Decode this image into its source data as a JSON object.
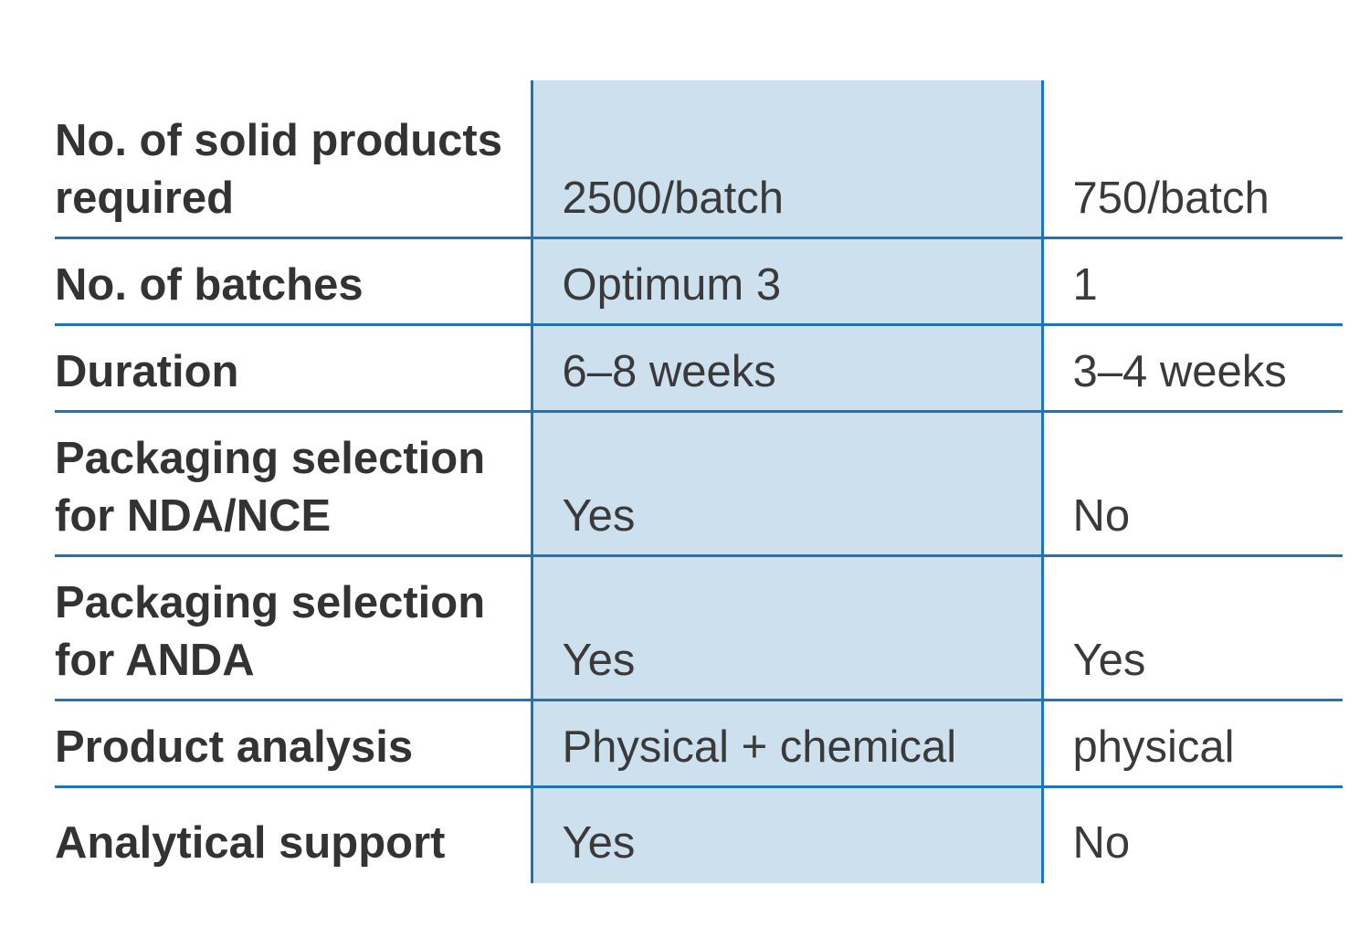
{
  "table": {
    "rows": [
      {
        "label": "No. of solid products required",
        "col_a": "2500/batch",
        "col_b": "750/batch"
      },
      {
        "label": "No. of batches",
        "col_a": "Optimum 3",
        "col_b": "1"
      },
      {
        "label": "Duration",
        "col_a": "6–8 weeks",
        "col_b": "3–4 weeks"
      },
      {
        "label": "Packaging selection for NDA/NCE",
        "col_a": "Yes",
        "col_b": "No"
      },
      {
        "label": "Packaging selection for ANDA",
        "col_a": "Yes",
        "col_b": "Yes"
      },
      {
        "label": "Product analysis",
        "col_a": "Physical + chemical",
        "col_b": "physical"
      },
      {
        "label": "Analytical support",
        "col_a": "Yes",
        "col_b": "No"
      }
    ]
  },
  "colors": {
    "rule": "#1f73b7",
    "highlight_column": "#cde0ee",
    "text": "#333333"
  }
}
